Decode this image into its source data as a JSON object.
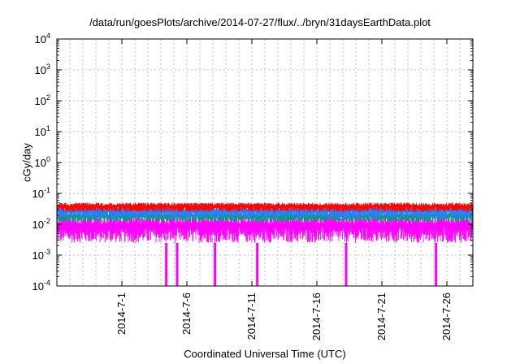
{
  "chart_data": {
    "type": "line",
    "title": "/data/run/goesPlots/archive/2014-07-27/flux/../bryn/31daysEarthData.plot",
    "xlabel": "Coordinated Universal Time (UTC)",
    "ylabel": "cGy/day",
    "yscale": "log",
    "ylim": [
      0.0001,
      10000
    ],
    "ytick_labels": [
      {
        "base": "10",
        "exp": "-4"
      },
      {
        "base": "10",
        "exp": "-3"
      },
      {
        "base": "10",
        "exp": "-2"
      },
      {
        "base": "10",
        "exp": "-1"
      },
      {
        "base": "10",
        "exp": "0"
      },
      {
        "base": "10",
        "exp": "1"
      },
      {
        "base": "10",
        "exp": "2"
      },
      {
        "base": "10",
        "exp": "3"
      },
      {
        "base": "10",
        "exp": "4"
      }
    ],
    "xlim": [
      "2014-06-26",
      "2014-07-28"
    ],
    "xtick_labels": [
      "2014-7-1",
      "2014-7-6",
      "2014-7-11",
      "2014-7-16",
      "2014-7-21",
      "2014-7-26"
    ],
    "xticks": [
      "2014-07-01",
      "2014-07-06",
      "2014-07-11",
      "2014-07-16",
      "2014-07-21",
      "2014-07-26"
    ],
    "grid": true,
    "series": [
      {
        "color": "#ff0000",
        "typical_range": [
          0.025,
          0.05
        ]
      },
      {
        "color": "#2f7bff",
        "typical_range": [
          0.015,
          0.04
        ]
      },
      {
        "color": "#00a070",
        "typical_range": [
          0.012,
          0.025
        ]
      },
      {
        "color": "#ff00ff",
        "typical_range": [
          0.0025,
          0.02
        ]
      }
    ],
    "dropouts": [
      {
        "date": "2014-07-04T10:00",
        "value": 0.0001
      },
      {
        "date": "2014-07-05T06:00",
        "value": 0.0001
      },
      {
        "date": "2014-07-08T04:00",
        "value": 0.0001
      },
      {
        "date": "2014-07-11T10:00",
        "value": 0.0001
      },
      {
        "date": "2014-07-18T06:00",
        "value": 0.0001
      },
      {
        "date": "2014-07-25T04:00",
        "value": 0.0001
      }
    ]
  }
}
